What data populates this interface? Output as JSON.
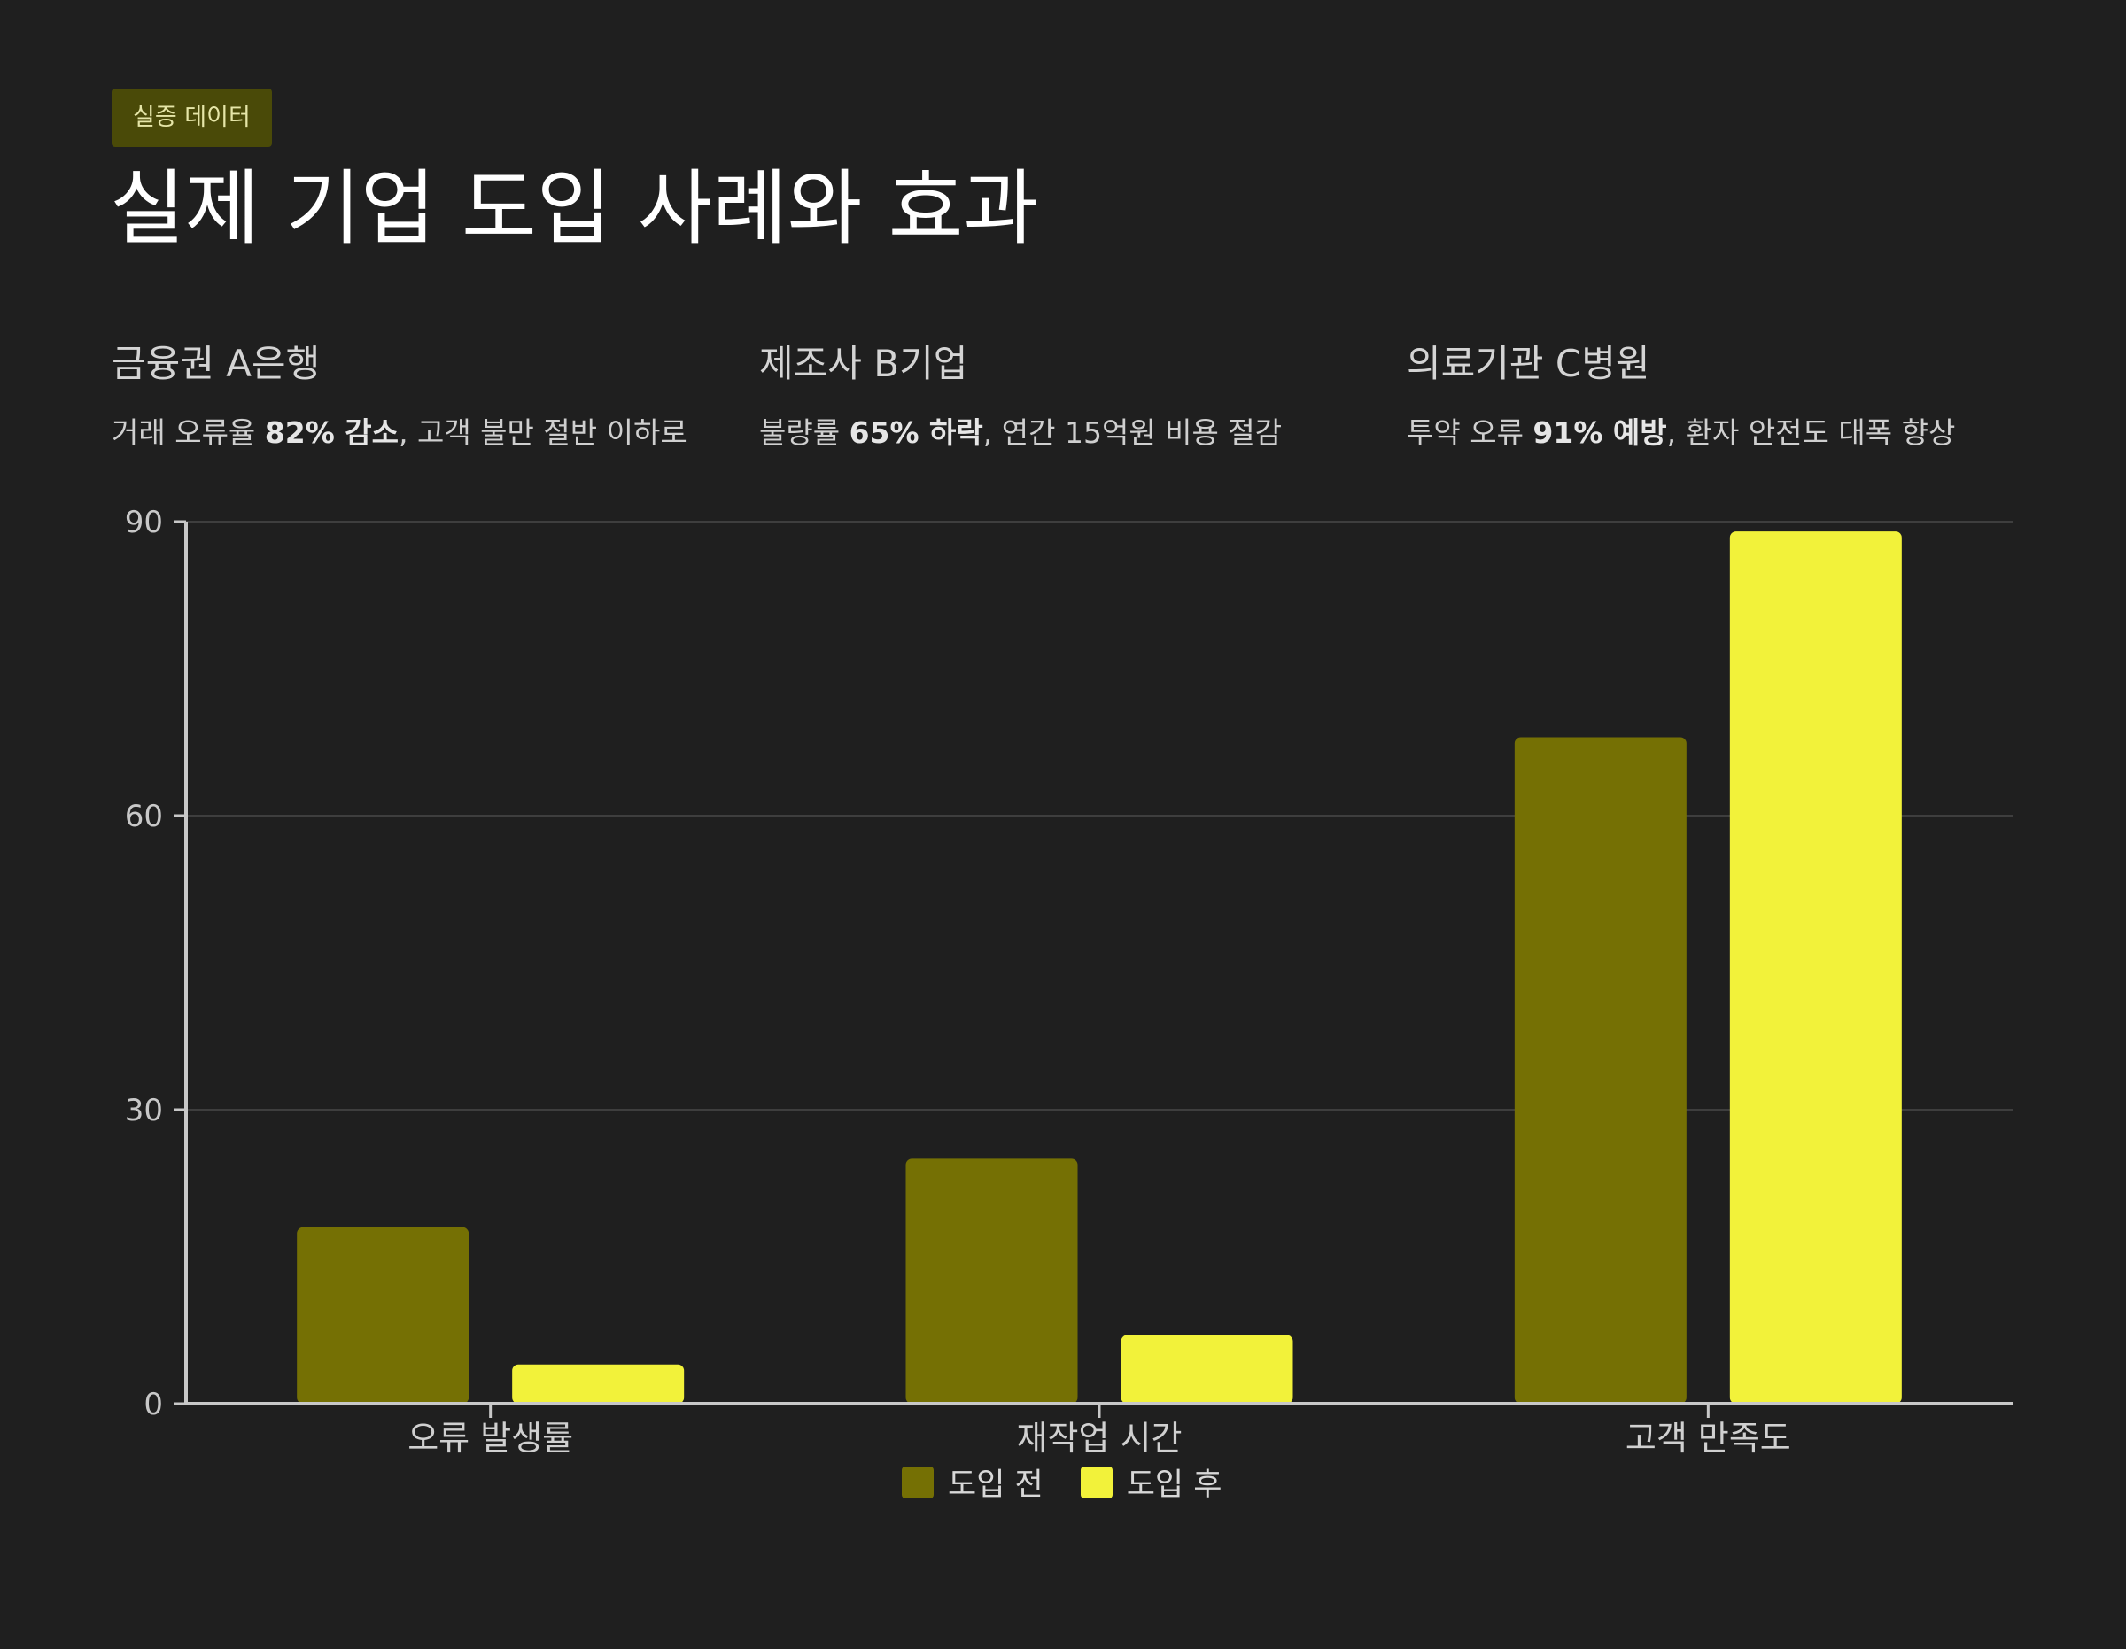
{
  "header": {
    "badge": "실증 데이터",
    "title": "실제 기업 도입 사례와 효과"
  },
  "cases": [
    {
      "title": "금융권 A은행",
      "desc_pre": "거래 오류율 ",
      "desc_bold": "82% 감소",
      "desc_post": ", 고객 불만 절반 이하로"
    },
    {
      "title": "제조사 B기업",
      "desc_pre": "불량률 ",
      "desc_bold": "65% 하락",
      "desc_post": ", 연간 15억원 비용 절감"
    },
    {
      "title": "의료기관 C병원",
      "desc_pre": "투약 오류 ",
      "desc_bold": "91% 예방",
      "desc_post": ", 환자 안전도 대폭 향상"
    }
  ],
  "colors": {
    "background": "#1f1f1f",
    "before": "#757004",
    "after": "#f2f23a",
    "badge_bg": "#4a4a08",
    "axis": "#c8c8c8",
    "grid": "#3e3e3e"
  },
  "chart_data": {
    "type": "bar",
    "categories": [
      "오류 발생률",
      "재작업 시간",
      "고객 만족도"
    ],
    "series": [
      {
        "name": "도입 전",
        "values": [
          18,
          25,
          68
        ]
      },
      {
        "name": "도입 후",
        "values": [
          4,
          7,
          89
        ]
      }
    ],
    "ylim": [
      0,
      90
    ],
    "yticks": [
      0,
      30,
      60,
      90
    ],
    "grid": true,
    "legend": "bottom-center",
    "title": "",
    "xlabel": "",
    "ylabel": ""
  }
}
